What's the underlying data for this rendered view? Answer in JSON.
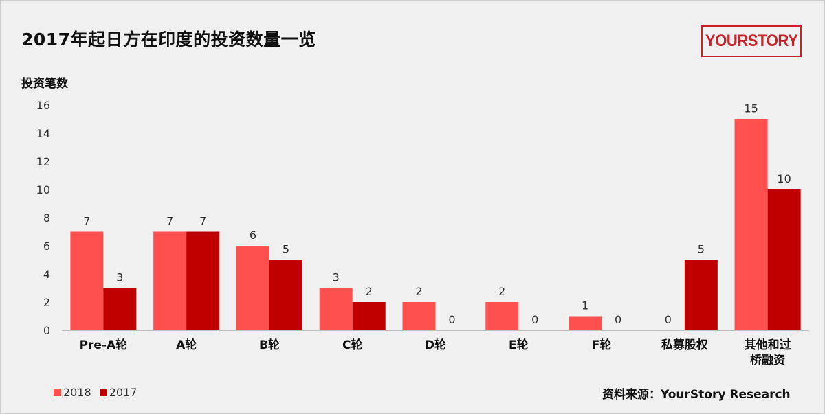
{
  "title": "2017年起日方在印度的投资数量一览",
  "logo": "YOURSTORY",
  "source": "资料来源：YourStory Research",
  "chart_data": {
    "type": "bar",
    "ylabel": "投资笔数",
    "xlabel": "",
    "ylim": [
      0,
      16
    ],
    "yticks": [
      0,
      2,
      4,
      6,
      8,
      10,
      12,
      14,
      16
    ],
    "categories": [
      [
        "Pre-A轮"
      ],
      [
        "A轮"
      ],
      [
        "B轮"
      ],
      [
        "C轮"
      ],
      [
        "D轮"
      ],
      [
        "E轮"
      ],
      [
        "F轮"
      ],
      [
        "私募股权"
      ],
      [
        "其他和过",
        "桥融资"
      ]
    ],
    "series": [
      {
        "name": "2018",
        "color": "#ff5050",
        "values": [
          7,
          7,
          6,
          3,
          2,
          2,
          1,
          0,
          15
        ]
      },
      {
        "name": "2017",
        "color": "#c00000",
        "values": [
          3,
          7,
          5,
          2,
          0,
          0,
          0,
          5,
          10
        ]
      }
    ],
    "grid": false,
    "legend": "bottom-left"
  }
}
